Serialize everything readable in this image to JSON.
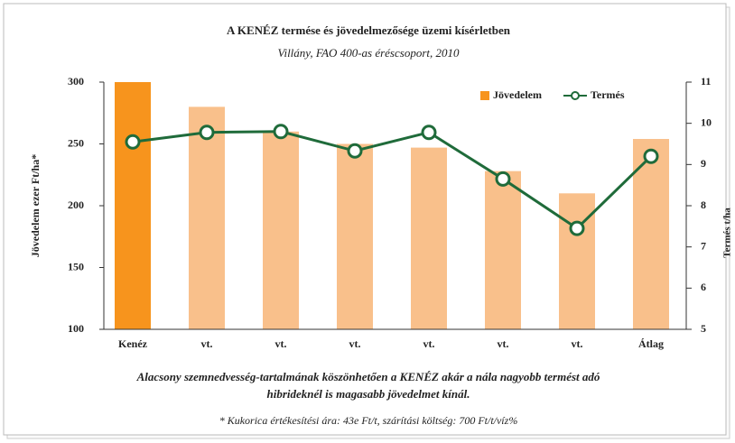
{
  "chart_data": {
    "type": "bar_line",
    "title": "A KENÉZ termése és jövedelmezősége üzemi kísérletben",
    "subtitle": "Villány, FAO 400-as éréscsoport, 2010",
    "y_label": "Jövedelem ezer Ft/ha*",
    "y2_label": "Termés t/ha",
    "categories": [
      "Kenéz",
      "vt.",
      "vt.",
      "vt.",
      "vt.",
      "vt.",
      "vt.",
      "Átlag"
    ],
    "series": [
      {
        "name": "Jövedelem",
        "type": "bar",
        "color": "#f7941d",
        "other_color": "#f9c08b",
        "values": [
          300,
          280,
          260,
          250,
          247,
          228,
          210,
          254
        ]
      },
      {
        "name": "Termés",
        "type": "line",
        "axis": "y2",
        "color": "#1f6b3a",
        "values": [
          9.55,
          9.78,
          9.8,
          9.33,
          9.78,
          8.65,
          7.45,
          9.2
        ]
      }
    ],
    "ylim": [
      100,
      300
    ],
    "yticks": [
      100,
      150,
      200,
      250,
      300
    ],
    "y2lim": [
      5,
      11
    ],
    "y2ticks": [
      5,
      6,
      7,
      8,
      9,
      10,
      11
    ],
    "legend": "top-right",
    "caption": [
      "Alacsony szemnedvesség-tartalmának köszönhetően  a KENÉZ akár a nála nagyobb termést adó",
      "hibrideknél is magasabb jövedelmet kínál."
    ],
    "footnote": "* Kukorica értékesítési ára: 43e Ft/t, szárítási költség: 700 Ft/t/víz%"
  }
}
